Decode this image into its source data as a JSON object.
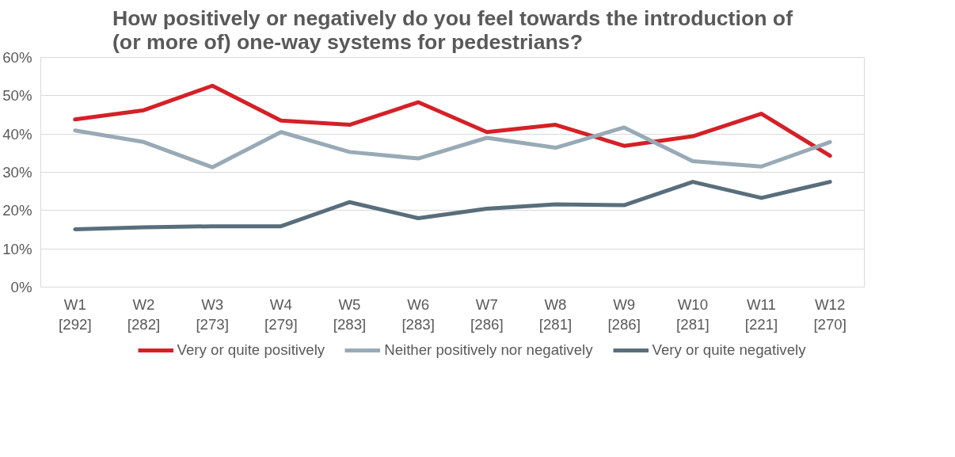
{
  "chart_data": {
    "type": "line",
    "title": "How positively or negatively do you feel towards the introduction of\n(or more of) one-way systems for pedestrians?",
    "categories": [
      "W1\n[292]",
      "W2\n[282]",
      "W3\n[273]",
      "W4\n[279]",
      "W5\n[283]",
      "W6\n[283]",
      "W7\n[286]",
      "W8\n[281]",
      "W9\n[286]",
      "W10\n[281]",
      "W11\n[221]",
      "W12\n[270]"
    ],
    "series": [
      {
        "name": "Very or quite positively",
        "color": "#d52027",
        "values": [
          43.8,
          46.2,
          52.6,
          43.5,
          42.4,
          48.3,
          40.5,
          42.4,
          36.9,
          39.4,
          45.3,
          34.3
        ]
      },
      {
        "name": "Neither positively nor negatively",
        "color": "#98aab6",
        "values": [
          40.9,
          37.9,
          31.3,
          40.5,
          35.3,
          33.6,
          39.0,
          36.4,
          41.7,
          32.9,
          31.5,
          37.9
        ]
      },
      {
        "name": "Very or quite negatively",
        "color": "#596e7c",
        "values": [
          15.1,
          15.6,
          15.9,
          15.9,
          22.2,
          18.0,
          20.5,
          21.6,
          21.4,
          27.5,
          23.3,
          27.5
        ]
      }
    ],
    "ylim": [
      0,
      60
    ],
    "yticks": [
      {
        "value": 0,
        "label": "0%"
      },
      {
        "value": 10,
        "label": "10%"
      },
      {
        "value": 20,
        "label": "20%"
      },
      {
        "value": 30,
        "label": "30%"
      },
      {
        "value": 40,
        "label": "40%"
      },
      {
        "value": 50,
        "label": "50%"
      },
      {
        "value": 60,
        "label": "60%"
      }
    ],
    "grid": "y",
    "legend": "bottom",
    "marker": "none",
    "line_style": "solid"
  }
}
